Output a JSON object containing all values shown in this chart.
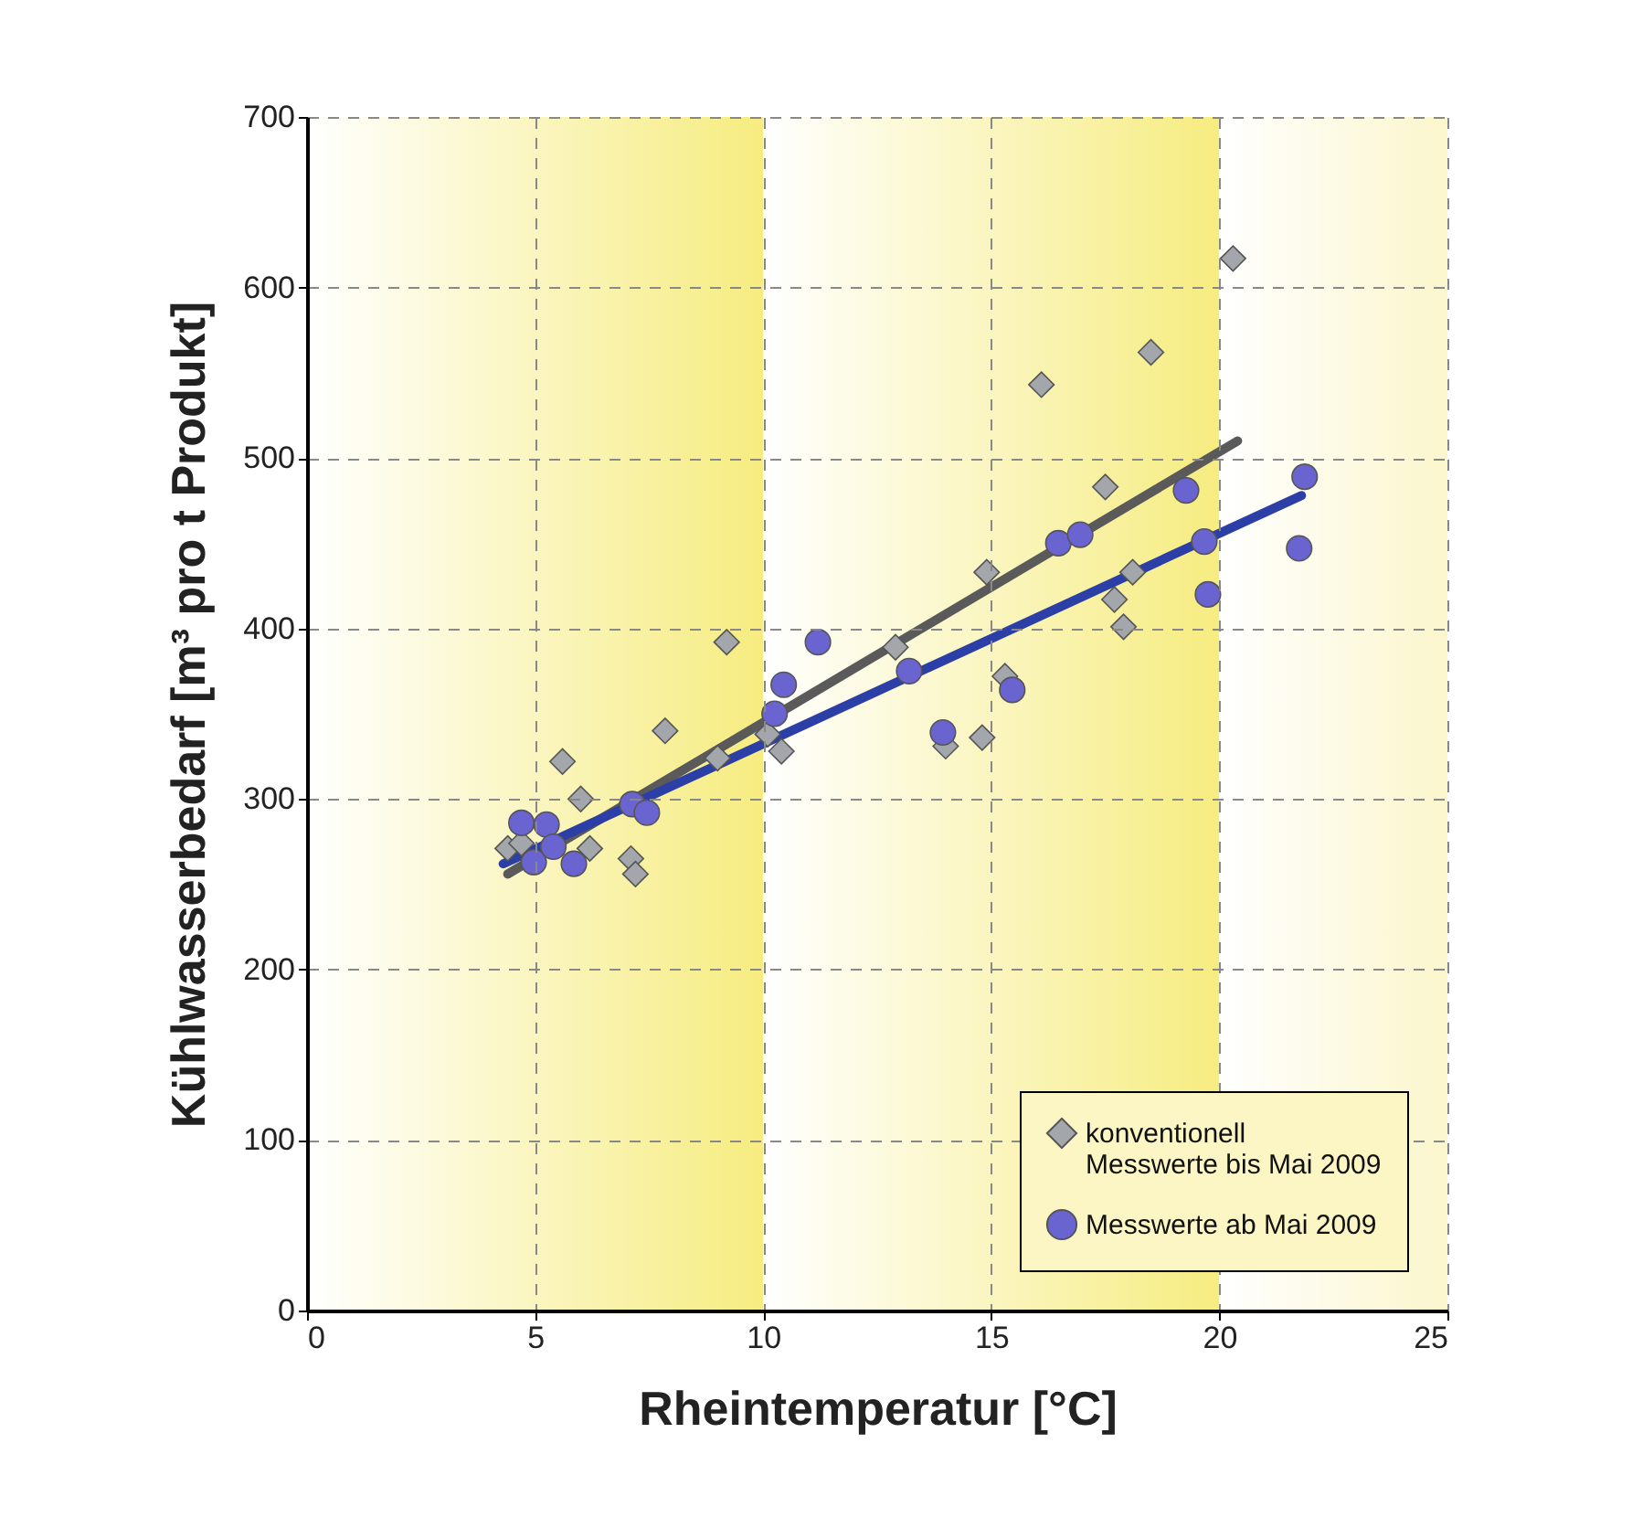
{
  "chart_data": {
    "type": "scatter",
    "xlabel": "Rheintemperatur [°C]",
    "ylabel": "Kühlwasserbedarf [m³ pro t Produkt]",
    "xlim": [
      0,
      25
    ],
    "xticks": [
      0,
      5,
      10,
      15,
      20,
      25
    ],
    "ylim": [
      0,
      700
    ],
    "yticks": [
      0,
      100,
      200,
      300,
      400,
      500,
      600,
      700
    ],
    "grid": true,
    "legend": "bottom right",
    "bands": [
      {
        "axis": "x",
        "from": 0,
        "to": 10,
        "color": "#f6ec80"
      },
      {
        "axis": "x",
        "from": 10,
        "to": 20,
        "color": "#f6ec80"
      },
      {
        "axis": "x",
        "from": 20,
        "to": 25,
        "color": "#fbf6cc"
      }
    ],
    "series": [
      {
        "name": "konventionell\nMesswerte bis Mai 2009",
        "marker": "diamond",
        "color": "#a3a7ab",
        "x": [
          4.4,
          4.7,
          5.6,
          6.0,
          6.2,
          7.1,
          7.2,
          7.85,
          9.0,
          9.2,
          10.1,
          10.4,
          12.9,
          14.0,
          14.8,
          14.9,
          15.3,
          16.1,
          17.5,
          17.7,
          17.9,
          18.1,
          18.5,
          20.3
        ],
        "values": [
          271,
          274,
          322,
          300,
          271,
          265,
          256,
          340,
          324,
          392,
          338,
          328,
          389,
          331,
          336,
          433,
          372,
          543,
          483,
          417,
          401,
          433,
          562,
          617
        ]
      },
      {
        "name": "Messwerte ab Mai 2009",
        "marker": "circle",
        "color": "#6a64d0",
        "x": [
          4.7,
          4.97,
          5.25,
          5.4,
          5.85,
          7.13,
          7.45,
          10.25,
          10.45,
          11.2,
          13.2,
          13.94,
          15.46,
          16.47,
          16.95,
          19.27,
          19.67,
          19.75,
          21.75,
          21.87
        ],
        "values": [
          286,
          263,
          285,
          272,
          262,
          297,
          292,
          350,
          367,
          392,
          375,
          339,
          364,
          450,
          455,
          481,
          451,
          420,
          447,
          489
        ]
      },
      {
        "type": "line",
        "marker": "none",
        "color": "#5a5a5a",
        "x": [
          4.4,
          20.4
        ],
        "values": [
          256,
          510
        ]
      },
      {
        "type": "line",
        "marker": "none",
        "color": "#2b3fa6",
        "x": [
          4.3,
          21.8
        ],
        "values": [
          262,
          478
        ]
      }
    ]
  }
}
